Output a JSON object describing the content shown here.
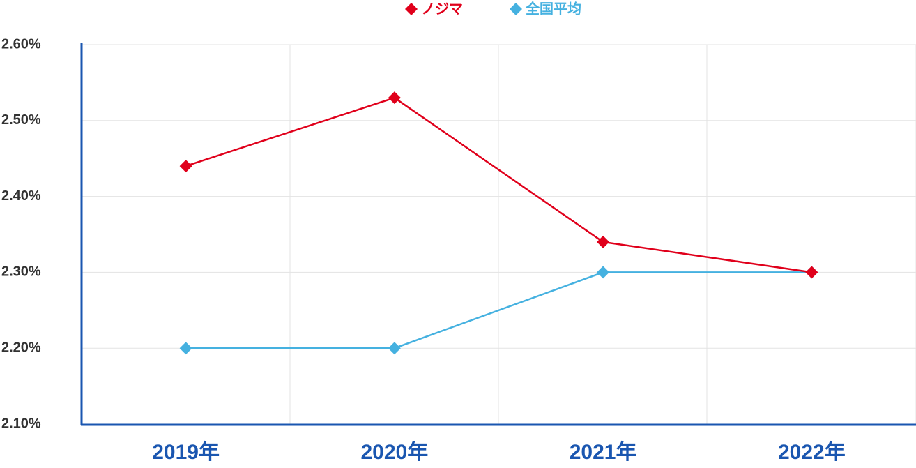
{
  "chart_data": {
    "type": "line",
    "categories": [
      "2019年",
      "2020年",
      "2021年",
      "2022年"
    ],
    "series": [
      {
        "name": "ノジマ",
        "color": "#e0001b",
        "values": [
          2.44,
          2.53,
          2.34,
          2.3
        ]
      },
      {
        "name": "全国平均",
        "color": "#45b1e0",
        "values": [
          2.2,
          2.2,
          2.3,
          2.3
        ]
      }
    ],
    "ylim": [
      2.1,
      2.6
    ],
    "yticks": [
      {
        "value": 2.1,
        "label": "2.10%"
      },
      {
        "value": 2.2,
        "label": "2.20%"
      },
      {
        "value": 2.3,
        "label": "2.30%"
      },
      {
        "value": 2.4,
        "label": "2.40%"
      },
      {
        "value": 2.5,
        "label": "2.50%"
      },
      {
        "value": 2.6,
        "label": "2.60%"
      }
    ],
    "grid": true,
    "legend": "top"
  }
}
